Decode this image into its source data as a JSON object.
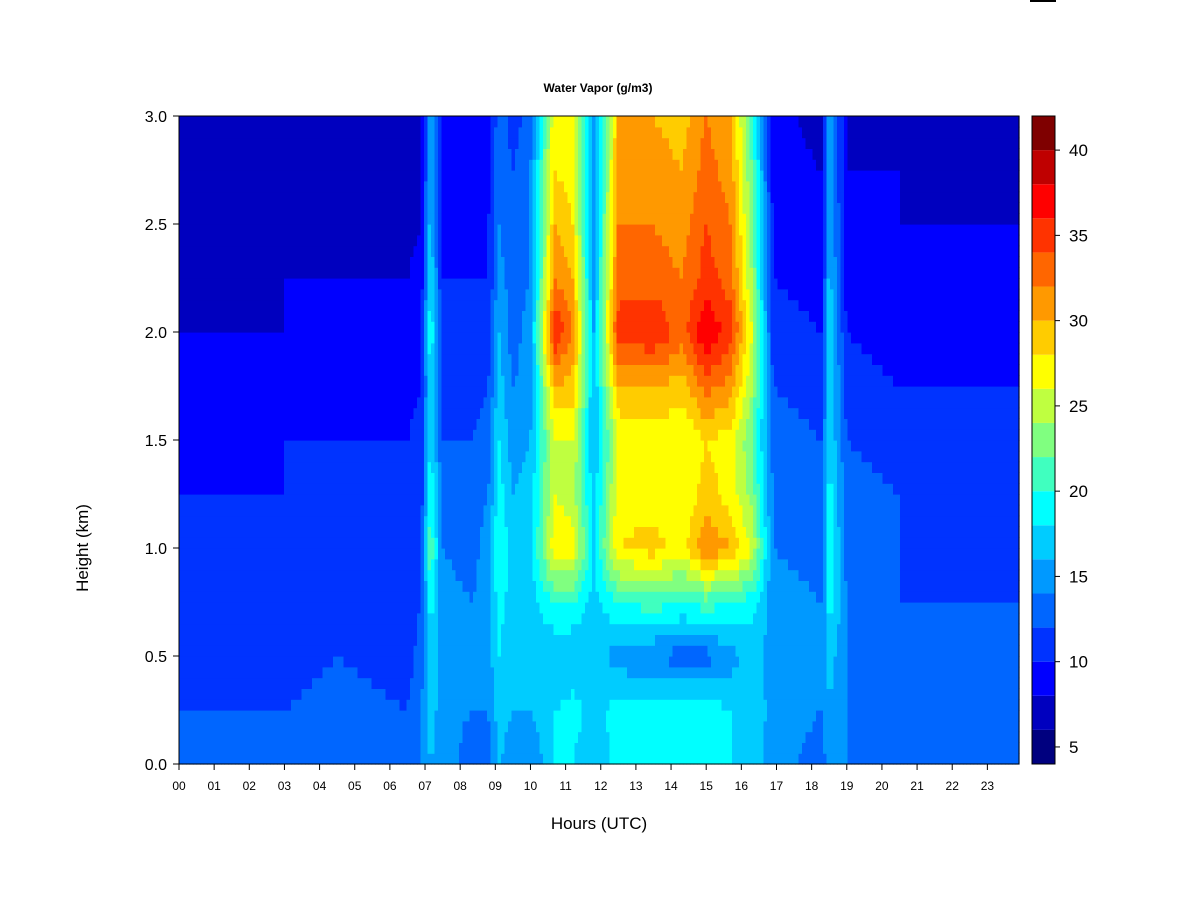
{
  "chart_data": {
    "type": "heatmap",
    "title": "Water Vapor (g/m3)",
    "xlabel": "Hours (UTC)",
    "ylabel": "Height (km)",
    "xlim": [
      0,
      23.9
    ],
    "ylim": [
      0,
      3.0
    ],
    "x_ticks": [
      "00",
      "01",
      "02",
      "03",
      "04",
      "05",
      "06",
      "07",
      "08",
      "09",
      "10",
      "11",
      "12",
      "13",
      "14",
      "15",
      "16",
      "17",
      "18",
      "19",
      "20",
      "21",
      "22",
      "23"
    ],
    "y_ticks": [
      "0.0",
      "0.5",
      "1.0",
      "1.5",
      "2.0",
      "2.5",
      "3.0"
    ],
    "colorbar": {
      "range": [
        4,
        42
      ],
      "ticks": [
        "5",
        "10",
        "15",
        "20",
        "25",
        "30",
        "35",
        "40"
      ],
      "levels": [
        4,
        6,
        8,
        10,
        12,
        14,
        16,
        18,
        20,
        22,
        24,
        26,
        28,
        30,
        32,
        34,
        36,
        38,
        40,
        42
      ],
      "colors": [
        "#00007F",
        "#0000BF",
        "#0000FF",
        "#0033FF",
        "#0066FF",
        "#0099FF",
        "#00CCFF",
        "#00FFFF",
        "#40FFBF",
        "#80FF80",
        "#BFFF40",
        "#FFFF00",
        "#FFCC00",
        "#FF9900",
        "#FF6600",
        "#FF3300",
        "#FF0000",
        "#BF0000",
        "#7F0000"
      ]
    },
    "series": [
      {
        "heights_km": [
          0.0,
          0.25,
          0.5,
          0.75,
          1.0,
          1.25,
          1.5,
          1.75,
          2.0,
          2.25,
          2.5,
          2.75,
          3.0
        ],
        "columns": [
          {
            "hour": 0,
            "values": [
              12,
              12,
              10,
              10,
              10,
              10,
              9,
              8,
              8,
              7,
              7,
              6,
              6
            ]
          },
          {
            "hour": 1.5,
            "values": [
              13,
              12,
              11,
              11,
              10,
              10,
              9,
              9,
              8,
              7,
              7,
              6,
              6
            ]
          },
          {
            "hour": 3,
            "values": [
              13,
              12,
              11,
              11,
              11,
              10,
              10,
              9,
              8,
              8,
              7,
              6,
              6
            ]
          },
          {
            "hour": 4.5,
            "values": [
              13,
              13,
              12,
              11,
              11,
              11,
              10,
              9,
              9,
              8,
              7,
              7,
              6
            ]
          },
          {
            "hour": 6.5,
            "values": [
              13,
              12,
              11,
              11,
              11,
              11,
              10,
              9,
              9,
              8,
              7,
              7,
              6
            ]
          },
          {
            "hour": 6.9,
            "values": [
              14,
              14,
              13,
              12,
              12,
              11,
              11,
              10,
              10,
              9,
              8,
              8,
              8
            ]
          },
          {
            "hour": 7.15,
            "values": [
              16,
              17,
              18,
              19,
              22,
              20,
              18,
              18,
              20,
              18,
              17,
              16,
              16
            ]
          },
          {
            "hour": 7.5,
            "values": [
              15,
              15,
              15,
              15,
              14,
              14,
              12,
              11,
              11,
              10,
              9,
              9,
              9
            ]
          },
          {
            "hour": 8.3,
            "values": [
              13,
              14,
              14,
              14,
              13,
              13,
              12,
              11,
              11,
              10,
              9,
              9,
              8
            ]
          },
          {
            "hour": 8.8,
            "values": [
              13,
              14,
              15,
              15,
              15,
              14,
              13,
              12,
              11,
              10,
              10,
              9,
              9
            ]
          },
          {
            "hour": 9.1,
            "values": [
              16,
              17,
              18,
              19,
              20,
              19,
              18,
              17,
              16,
              15,
              14,
              14,
              13
            ]
          },
          {
            "hour": 9.5,
            "values": [
              15,
              16,
              16,
              17,
              17,
              16,
              15,
              14,
              13,
              13,
              12,
              12,
              11
            ]
          },
          {
            "hour": 10.0,
            "values": [
              14,
              16,
              17,
              17,
              17,
              17,
              16,
              15,
              15,
              14,
              14,
              14,
              13
            ]
          },
          {
            "hour": 10.7,
            "values": [
              18,
              18,
              16,
              20,
              28,
              26,
              26,
              30,
              36,
              32,
              30,
              28,
              28
            ]
          },
          {
            "hour": 11.2,
            "values": [
              18,
              19,
              16,
              20,
              27,
              25,
              26,
              29,
              32,
              30,
              28,
              27,
              27
            ]
          },
          {
            "hour": 11.8,
            "values": [
              16,
              17,
              17,
              17,
              18,
              17,
              16,
              16,
              16,
              15,
              15,
              14,
              14
            ]
          },
          {
            "hour": 12.5,
            "values": [
              19,
              19,
              15,
              20,
              28,
              27,
              26,
              30,
              35,
              33,
              32,
              31,
              30
            ]
          },
          {
            "hour": 13.5,
            "values": [
              19,
              19,
              14,
              21,
              29,
              27,
              27,
              30,
              36,
              33,
              32,
              31,
              30
            ]
          },
          {
            "hour": 14.3,
            "values": [
              19,
              19,
              13,
              20,
              27,
              26,
              26,
              29,
              33,
              32,
              31,
              30,
              29
            ]
          },
          {
            "hour": 15.0,
            "values": [
              19,
              19,
              13,
              21,
              32,
              29,
              28,
              33,
              38,
              35,
              34,
              33,
              32
            ]
          },
          {
            "hour": 15.7,
            "values": [
              18,
              18,
              15,
              20,
              30,
              27,
              27,
              31,
              35,
              33,
              32,
              31,
              30
            ]
          },
          {
            "hour": 16.3,
            "values": [
              17,
              18,
              17,
              19,
              26,
              23,
              22,
              24,
              26,
              24,
              23,
              22,
              21
            ]
          },
          {
            "hour": 16.9,
            "values": [
              15,
              15,
              15,
              15,
              14,
              14,
              13,
              12,
              11,
              10,
              10,
              9,
              9
            ]
          },
          {
            "hour": 18.3,
            "values": [
              13,
              14,
              14,
              14,
              13,
              13,
              12,
              11,
              10,
              9,
              8,
              8,
              7
            ]
          },
          {
            "hour": 18.5,
            "values": [
              15,
              16,
              17,
              19,
              20,
              19,
              18,
              18,
              18,
              17,
              16,
              16,
              16
            ]
          },
          {
            "hour": 19.0,
            "values": [
              14,
              14,
              14,
              14,
              13,
              13,
              12,
              11,
              10,
              9,
              9,
              8,
              8
            ]
          },
          {
            "hour": 20.5,
            "values": [
              13,
              13,
              12,
              12,
              12,
              12,
              11,
              10,
              9,
              9,
              8,
              8,
              7
            ]
          },
          {
            "hour": 22.0,
            "values": [
              13,
              12,
              12,
              12,
              11,
              11,
              11,
              10,
              9,
              8,
              8,
              7,
              7
            ]
          },
          {
            "hour": 23.9,
            "values": [
              14,
              13,
              12,
              12,
              11,
              11,
              11,
              10,
              9,
              8,
              8,
              7,
              7
            ]
          }
        ]
      }
    ]
  }
}
